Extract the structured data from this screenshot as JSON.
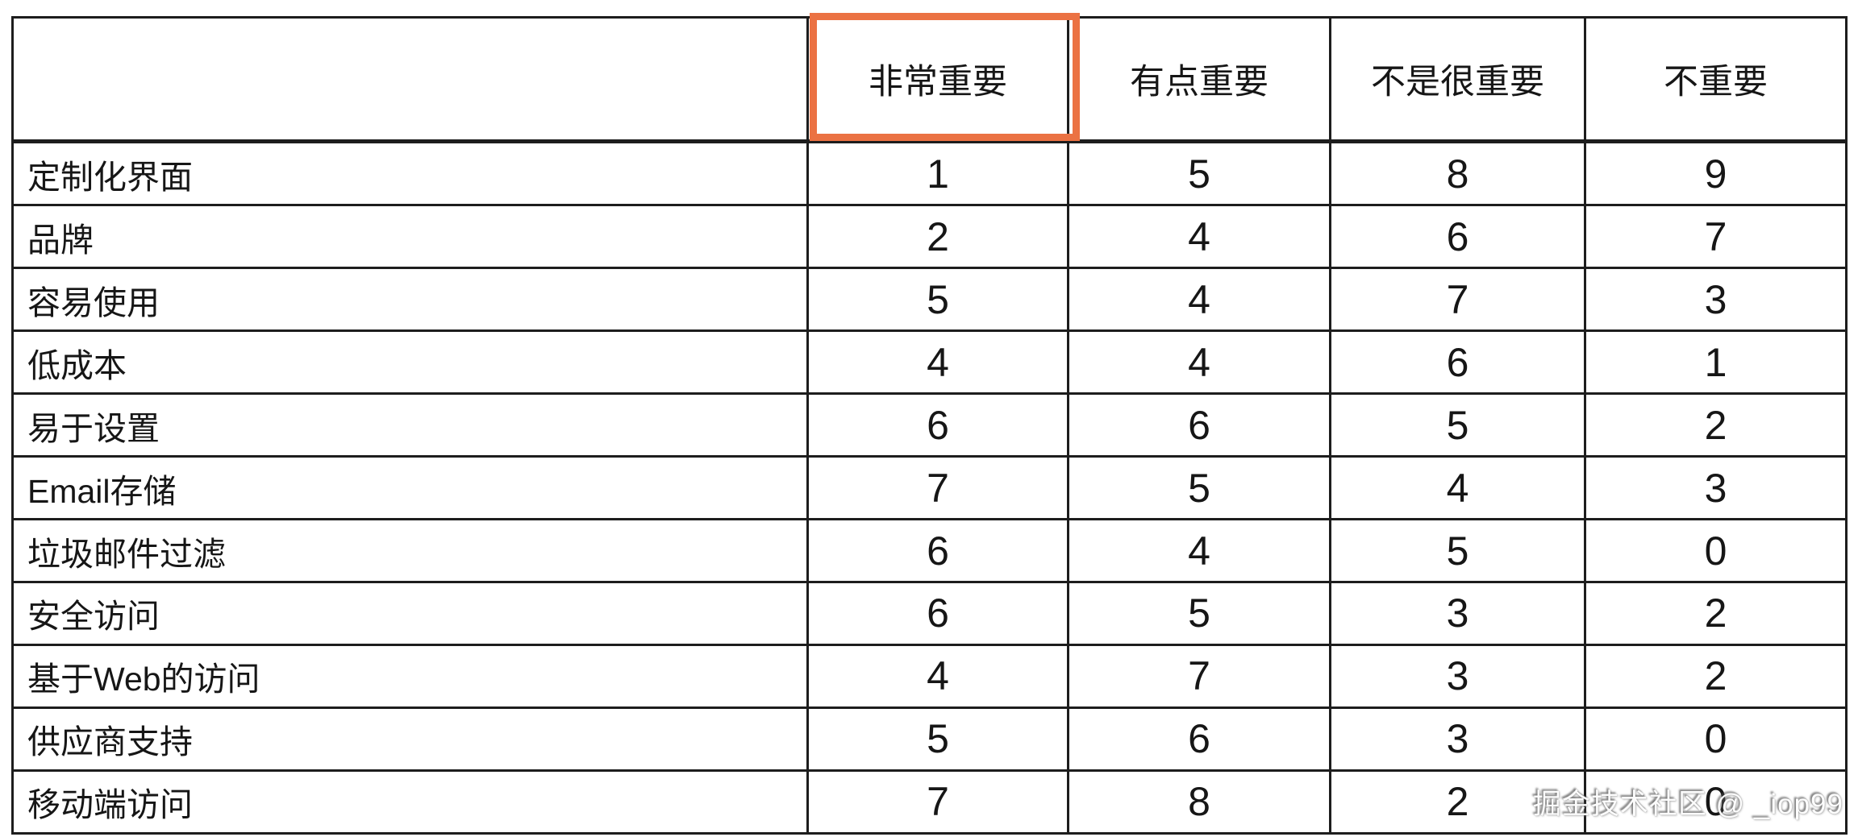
{
  "table": {
    "corner_label": "",
    "columns": [
      "非常重要",
      "有点重要",
      "不是很重要",
      "不重要"
    ],
    "rows": [
      {
        "label": "定制化界面",
        "values": [
          "1",
          "5",
          "8",
          "9"
        ]
      },
      {
        "label": "品牌",
        "values": [
          "2",
          "4",
          "6",
          "7"
        ]
      },
      {
        "label": "容易使用",
        "values": [
          "5",
          "4",
          "7",
          "3"
        ]
      },
      {
        "label": "低成本",
        "values": [
          "4",
          "4",
          "6",
          "1"
        ]
      },
      {
        "label": "易于设置",
        "values": [
          "6",
          "6",
          "5",
          "2"
        ]
      },
      {
        "label": "Email存储",
        "values": [
          "7",
          "5",
          "4",
          "3"
        ]
      },
      {
        "label": "垃圾邮件过滤",
        "values": [
          "6",
          "4",
          "5",
          "0"
        ]
      },
      {
        "label": "安全访问",
        "values": [
          "6",
          "5",
          "3",
          "2"
        ]
      },
      {
        "label": "基于Web的访问",
        "values": [
          "4",
          "7",
          "3",
          "2"
        ]
      },
      {
        "label": "供应商支持",
        "values": [
          "5",
          "6",
          "3",
          "0"
        ]
      },
      {
        "label": "移动端访问",
        "values": [
          "7",
          "8",
          "2",
          "0"
        ]
      }
    ]
  },
  "highlight": {
    "target_column": "非常重要",
    "color": "#EB7243"
  },
  "watermark": {
    "text": "掘金技术社区 @ _iop99"
  },
  "chart_data": {
    "type": "table",
    "title": "",
    "columns": [
      "",
      "非常重要",
      "有点重要",
      "不是很重要",
      "不重要"
    ],
    "rows": [
      [
        "定制化界面",
        1,
        5,
        8,
        9
      ],
      [
        "品牌",
        2,
        4,
        6,
        7
      ],
      [
        "容易使用",
        5,
        4,
        7,
        3
      ],
      [
        "低成本",
        4,
        4,
        6,
        1
      ],
      [
        "易于设置",
        6,
        6,
        5,
        2
      ],
      [
        "Email存储",
        7,
        5,
        4,
        3
      ],
      [
        "垃圾邮件过滤",
        6,
        4,
        5,
        0
      ],
      [
        "安全访问",
        6,
        5,
        3,
        2
      ],
      [
        "基于Web的访问",
        4,
        7,
        3,
        2
      ],
      [
        "供应商支持",
        5,
        6,
        3,
        0
      ],
      [
        "移动端访问",
        7,
        8,
        2,
        0
      ]
    ],
    "highlighted_column": "非常重要",
    "highlight_color": "#EB7243"
  }
}
